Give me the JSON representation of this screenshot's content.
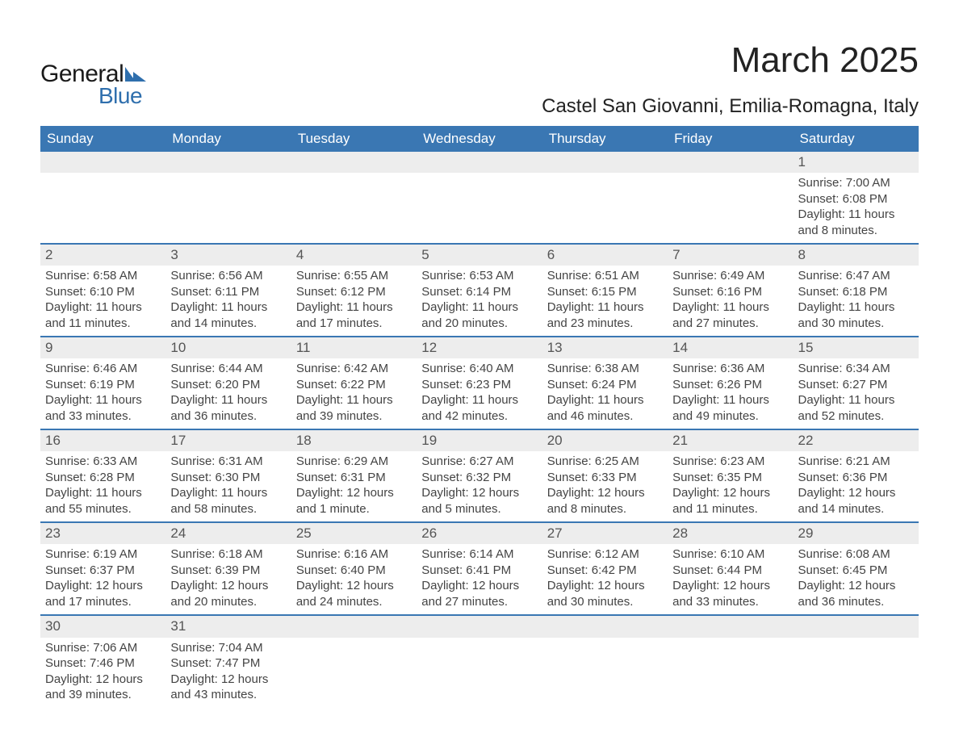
{
  "brand": {
    "word1": "General",
    "word2": "Blue",
    "accent_color": "#2f6fad"
  },
  "title": "March 2025",
  "location": "Castel San Giovanni, Emilia-Romagna, Italy",
  "columns": [
    "Sunday",
    "Monday",
    "Tuesday",
    "Wednesday",
    "Thursday",
    "Friday",
    "Saturday"
  ],
  "colors": {
    "header_bg": "#3a77b3",
    "header_text": "#ffffff",
    "daynum_bg": "#ededed",
    "row_divider": "#3a77b3",
    "text": "#444444",
    "background": "#ffffff"
  },
  "fonts": {
    "title_size_pt": 33,
    "location_size_pt": 18,
    "header_size_pt": 13,
    "body_size_pt": 11
  },
  "weeks": [
    [
      null,
      null,
      null,
      null,
      null,
      null,
      {
        "n": "1",
        "sr": "Sunrise: 7:00 AM",
        "ss": "Sunset: 6:08 PM",
        "d1": "Daylight: 11 hours",
        "d2": "and 8 minutes."
      }
    ],
    [
      {
        "n": "2",
        "sr": "Sunrise: 6:58 AM",
        "ss": "Sunset: 6:10 PM",
        "d1": "Daylight: 11 hours",
        "d2": "and 11 minutes."
      },
      {
        "n": "3",
        "sr": "Sunrise: 6:56 AM",
        "ss": "Sunset: 6:11 PM",
        "d1": "Daylight: 11 hours",
        "d2": "and 14 minutes."
      },
      {
        "n": "4",
        "sr": "Sunrise: 6:55 AM",
        "ss": "Sunset: 6:12 PM",
        "d1": "Daylight: 11 hours",
        "d2": "and 17 minutes."
      },
      {
        "n": "5",
        "sr": "Sunrise: 6:53 AM",
        "ss": "Sunset: 6:14 PM",
        "d1": "Daylight: 11 hours",
        "d2": "and 20 minutes."
      },
      {
        "n": "6",
        "sr": "Sunrise: 6:51 AM",
        "ss": "Sunset: 6:15 PM",
        "d1": "Daylight: 11 hours",
        "d2": "and 23 minutes."
      },
      {
        "n": "7",
        "sr": "Sunrise: 6:49 AM",
        "ss": "Sunset: 6:16 PM",
        "d1": "Daylight: 11 hours",
        "d2": "and 27 minutes."
      },
      {
        "n": "8",
        "sr": "Sunrise: 6:47 AM",
        "ss": "Sunset: 6:18 PM",
        "d1": "Daylight: 11 hours",
        "d2": "and 30 minutes."
      }
    ],
    [
      {
        "n": "9",
        "sr": "Sunrise: 6:46 AM",
        "ss": "Sunset: 6:19 PM",
        "d1": "Daylight: 11 hours",
        "d2": "and 33 minutes."
      },
      {
        "n": "10",
        "sr": "Sunrise: 6:44 AM",
        "ss": "Sunset: 6:20 PM",
        "d1": "Daylight: 11 hours",
        "d2": "and 36 minutes."
      },
      {
        "n": "11",
        "sr": "Sunrise: 6:42 AM",
        "ss": "Sunset: 6:22 PM",
        "d1": "Daylight: 11 hours",
        "d2": "and 39 minutes."
      },
      {
        "n": "12",
        "sr": "Sunrise: 6:40 AM",
        "ss": "Sunset: 6:23 PM",
        "d1": "Daylight: 11 hours",
        "d2": "and 42 minutes."
      },
      {
        "n": "13",
        "sr": "Sunrise: 6:38 AM",
        "ss": "Sunset: 6:24 PM",
        "d1": "Daylight: 11 hours",
        "d2": "and 46 minutes."
      },
      {
        "n": "14",
        "sr": "Sunrise: 6:36 AM",
        "ss": "Sunset: 6:26 PM",
        "d1": "Daylight: 11 hours",
        "d2": "and 49 minutes."
      },
      {
        "n": "15",
        "sr": "Sunrise: 6:34 AM",
        "ss": "Sunset: 6:27 PM",
        "d1": "Daylight: 11 hours",
        "d2": "and 52 minutes."
      }
    ],
    [
      {
        "n": "16",
        "sr": "Sunrise: 6:33 AM",
        "ss": "Sunset: 6:28 PM",
        "d1": "Daylight: 11 hours",
        "d2": "and 55 minutes."
      },
      {
        "n": "17",
        "sr": "Sunrise: 6:31 AM",
        "ss": "Sunset: 6:30 PM",
        "d1": "Daylight: 11 hours",
        "d2": "and 58 minutes."
      },
      {
        "n": "18",
        "sr": "Sunrise: 6:29 AM",
        "ss": "Sunset: 6:31 PM",
        "d1": "Daylight: 12 hours",
        "d2": "and 1 minute."
      },
      {
        "n": "19",
        "sr": "Sunrise: 6:27 AM",
        "ss": "Sunset: 6:32 PM",
        "d1": "Daylight: 12 hours",
        "d2": "and 5 minutes."
      },
      {
        "n": "20",
        "sr": "Sunrise: 6:25 AM",
        "ss": "Sunset: 6:33 PM",
        "d1": "Daylight: 12 hours",
        "d2": "and 8 minutes."
      },
      {
        "n": "21",
        "sr": "Sunrise: 6:23 AM",
        "ss": "Sunset: 6:35 PM",
        "d1": "Daylight: 12 hours",
        "d2": "and 11 minutes."
      },
      {
        "n": "22",
        "sr": "Sunrise: 6:21 AM",
        "ss": "Sunset: 6:36 PM",
        "d1": "Daylight: 12 hours",
        "d2": "and 14 minutes."
      }
    ],
    [
      {
        "n": "23",
        "sr": "Sunrise: 6:19 AM",
        "ss": "Sunset: 6:37 PM",
        "d1": "Daylight: 12 hours",
        "d2": "and 17 minutes."
      },
      {
        "n": "24",
        "sr": "Sunrise: 6:18 AM",
        "ss": "Sunset: 6:39 PM",
        "d1": "Daylight: 12 hours",
        "d2": "and 20 minutes."
      },
      {
        "n": "25",
        "sr": "Sunrise: 6:16 AM",
        "ss": "Sunset: 6:40 PM",
        "d1": "Daylight: 12 hours",
        "d2": "and 24 minutes."
      },
      {
        "n": "26",
        "sr": "Sunrise: 6:14 AM",
        "ss": "Sunset: 6:41 PM",
        "d1": "Daylight: 12 hours",
        "d2": "and 27 minutes."
      },
      {
        "n": "27",
        "sr": "Sunrise: 6:12 AM",
        "ss": "Sunset: 6:42 PM",
        "d1": "Daylight: 12 hours",
        "d2": "and 30 minutes."
      },
      {
        "n": "28",
        "sr": "Sunrise: 6:10 AM",
        "ss": "Sunset: 6:44 PM",
        "d1": "Daylight: 12 hours",
        "d2": "and 33 minutes."
      },
      {
        "n": "29",
        "sr": "Sunrise: 6:08 AM",
        "ss": "Sunset: 6:45 PM",
        "d1": "Daylight: 12 hours",
        "d2": "and 36 minutes."
      }
    ],
    [
      {
        "n": "30",
        "sr": "Sunrise: 7:06 AM",
        "ss": "Sunset: 7:46 PM",
        "d1": "Daylight: 12 hours",
        "d2": "and 39 minutes."
      },
      {
        "n": "31",
        "sr": "Sunrise: 7:04 AM",
        "ss": "Sunset: 7:47 PM",
        "d1": "Daylight: 12 hours",
        "d2": "and 43 minutes."
      },
      null,
      null,
      null,
      null,
      null
    ]
  ]
}
